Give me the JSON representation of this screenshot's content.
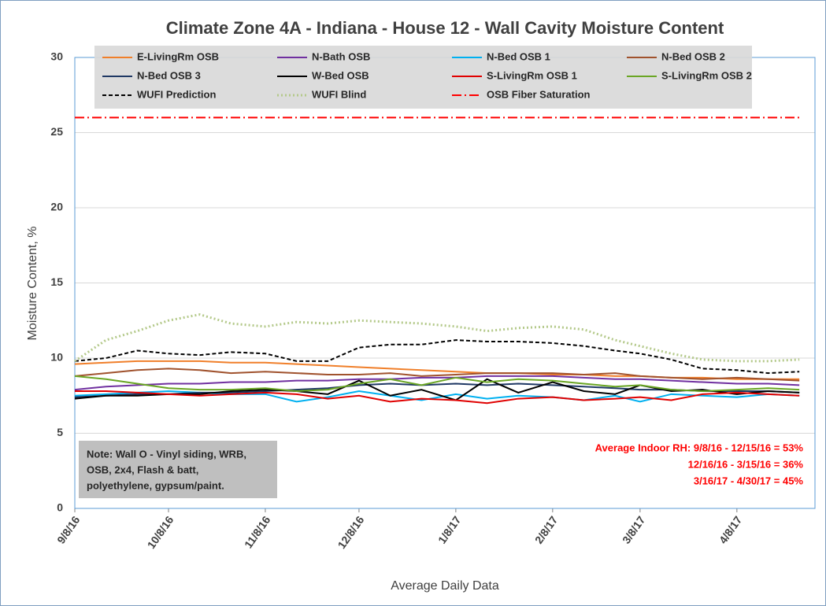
{
  "chart_data": {
    "type": "line",
    "title": "Climate Zone 4A - Indiana - House 12 - Wall Cavity Moisture Content",
    "y_label": "Moisture Content, %",
    "x_label": "Average Daily Data",
    "note": [
      "Note: Wall O - Vinyl siding, WRB,",
      "OSB, 2x4, Flash & batt,",
      "polyethylene, gypsum/paint."
    ],
    "annotation": [
      "Average Indoor RH:  9/8/16 - 12/15/16 = 53%",
      "12/16/16 - 3/15/16 = 36%",
      "3/16/17 - 4/30/17 = 45%"
    ],
    "x": [
      "9/8/16",
      "9/18/16",
      "9/28/16",
      "10/8/16",
      "10/18/16",
      "10/28/16",
      "11/8/16",
      "11/18/16",
      "11/28/16",
      "12/8/16",
      "12/18/16",
      "12/28/16",
      "1/8/17",
      "1/18/17",
      "1/28/17",
      "2/8/17",
      "2/18/17",
      "2/28/17",
      "3/8/17",
      "3/18/17",
      "3/28/17",
      "4/8/17",
      "4/18/17",
      "4/28/17"
    ],
    "xlim": [
      "9/8/16",
      "5/3/17"
    ],
    "xticks": [
      "9/8/16",
      "10/8/16",
      "11/8/16",
      "12/8/16",
      "1/8/17",
      "2/8/17",
      "3/8/17",
      "4/8/17"
    ],
    "ylim": [
      0,
      30
    ],
    "yticks": [
      0,
      5,
      10,
      15,
      20,
      25,
      30
    ],
    "grid": true,
    "series": [
      {
        "name": "E-LivingRm OSB",
        "color": "#f07f2a",
        "dash": "solid",
        "values": [
          9.6,
          9.7,
          9.8,
          9.8,
          9.8,
          9.7,
          9.7,
          9.6,
          9.5,
          9.4,
          9.3,
          9.2,
          9.1,
          9.0,
          9.0,
          8.9,
          8.9,
          8.8,
          8.8,
          8.7,
          8.7,
          8.6,
          8.6,
          8.6
        ]
      },
      {
        "name": "N-Bath OSB",
        "color": "#7030a0",
        "dash": "solid",
        "values": [
          7.9,
          8.1,
          8.2,
          8.3,
          8.3,
          8.4,
          8.4,
          8.5,
          8.5,
          8.6,
          8.6,
          8.7,
          8.7,
          8.8,
          8.8,
          8.8,
          8.7,
          8.6,
          8.6,
          8.5,
          8.4,
          8.3,
          8.3,
          8.2
        ]
      },
      {
        "name": "N-Bed OSB 1",
        "color": "#00b0f0",
        "dash": "solid",
        "values": [
          7.5,
          7.6,
          7.7,
          7.8,
          7.7,
          7.6,
          7.6,
          7.1,
          7.4,
          7.8,
          7.5,
          7.2,
          7.6,
          7.3,
          7.5,
          7.4,
          7.2,
          7.5,
          7.1,
          7.6,
          7.5,
          7.4,
          7.6,
          7.5
        ]
      },
      {
        "name": "N-Bed OSB 2",
        "color": "#a0522d",
        "dash": "solid",
        "values": [
          8.8,
          9.0,
          9.2,
          9.3,
          9.2,
          9.0,
          9.1,
          9.0,
          8.9,
          8.9,
          9.0,
          8.8,
          8.9,
          9.0,
          9.0,
          9.0,
          8.9,
          9.0,
          8.8,
          8.7,
          8.6,
          8.7,
          8.6,
          8.5
        ]
      },
      {
        "name": "N-Bed OSB 3",
        "color": "#1f3864",
        "dash": "solid",
        "values": [
          7.4,
          7.5,
          7.6,
          7.6,
          7.7,
          7.7,
          7.8,
          7.9,
          8.0,
          8.2,
          8.3,
          8.2,
          8.3,
          8.2,
          8.3,
          8.2,
          8.1,
          8.0,
          7.9,
          7.9,
          7.8,
          7.8,
          7.8,
          7.7
        ]
      },
      {
        "name": "W-Bed OSB",
        "color": "#000000",
        "dash": "solid",
        "values": [
          7.3,
          7.5,
          7.5,
          7.6,
          7.6,
          7.8,
          7.9,
          7.8,
          7.6,
          8.5,
          7.5,
          7.9,
          7.2,
          8.6,
          7.7,
          8.4,
          7.8,
          7.6,
          8.2,
          7.8,
          7.9,
          7.6,
          7.8,
          7.7
        ]
      },
      {
        "name": "S-LivingRm OSB 1",
        "color": "#e00000",
        "dash": "solid",
        "values": [
          7.8,
          7.8,
          7.7,
          7.6,
          7.5,
          7.6,
          7.7,
          7.6,
          7.3,
          7.5,
          7.1,
          7.3,
          7.2,
          7.0,
          7.3,
          7.4,
          7.2,
          7.3,
          7.4,
          7.2,
          7.6,
          7.7,
          7.6,
          7.5
        ]
      },
      {
        "name": "S-LivingRm OSB 2",
        "color": "#6aa624",
        "dash": "solid",
        "values": [
          8.8,
          8.6,
          8.3,
          8.0,
          7.9,
          7.9,
          8.0,
          7.8,
          7.9,
          8.3,
          8.6,
          8.2,
          8.7,
          8.4,
          8.6,
          8.5,
          8.3,
          8.1,
          8.2,
          7.9,
          7.8,
          7.9,
          8.0,
          7.9
        ]
      },
      {
        "name": "WUFI Prediction",
        "color": "#000000",
        "dash": "dashed",
        "values": [
          9.8,
          10.0,
          10.5,
          10.3,
          10.2,
          10.4,
          10.3,
          9.8,
          9.8,
          10.7,
          10.9,
          10.9,
          11.2,
          11.1,
          11.1,
          11.0,
          10.8,
          10.5,
          10.3,
          9.9,
          9.3,
          9.2,
          9.0,
          9.1
        ]
      },
      {
        "name": "WUFI Blind",
        "color": "#b4c98a",
        "dash": "dotted",
        "values": [
          9.8,
          11.2,
          11.8,
          12.5,
          12.9,
          12.3,
          12.1,
          12.4,
          12.3,
          12.5,
          12.4,
          12.3,
          12.1,
          11.8,
          12.0,
          12.1,
          11.9,
          11.2,
          10.8,
          10.3,
          9.9,
          9.8,
          9.8,
          9.9
        ]
      },
      {
        "name": "OSB Fiber Saturation",
        "color": "#ff0000",
        "dash": "dashdot",
        "values": [
          26,
          26,
          26,
          26,
          26,
          26,
          26,
          26,
          26,
          26,
          26,
          26,
          26,
          26,
          26,
          26,
          26,
          26,
          26,
          26,
          26,
          26,
          26,
          26
        ]
      }
    ]
  }
}
